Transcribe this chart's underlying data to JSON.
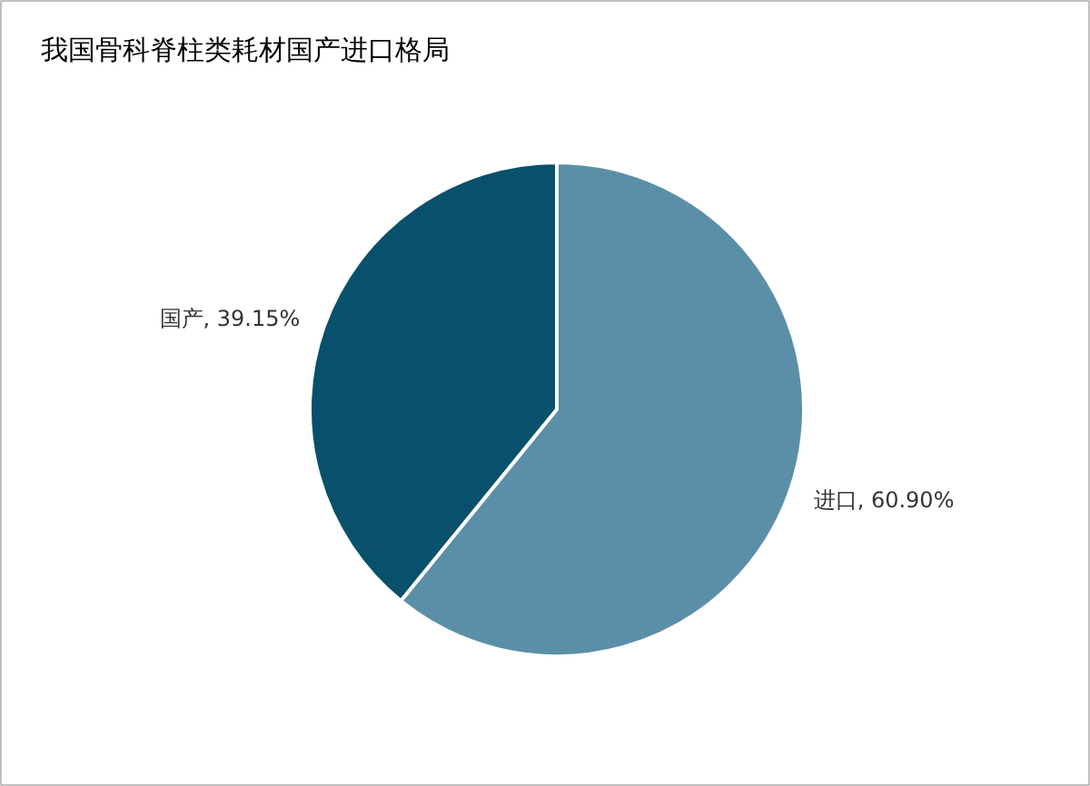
{
  "chart_data": {
    "type": "pie",
    "title": "我国骨科脊柱类耗材国产进口格局",
    "categories": [
      "进口",
      "国产"
    ],
    "values": [
      60.9,
      39.15
    ],
    "value_labels": [
      "60.90%",
      "39.15%"
    ],
    "colors": [
      "#5b8fa8",
      "#08506b"
    ]
  }
}
